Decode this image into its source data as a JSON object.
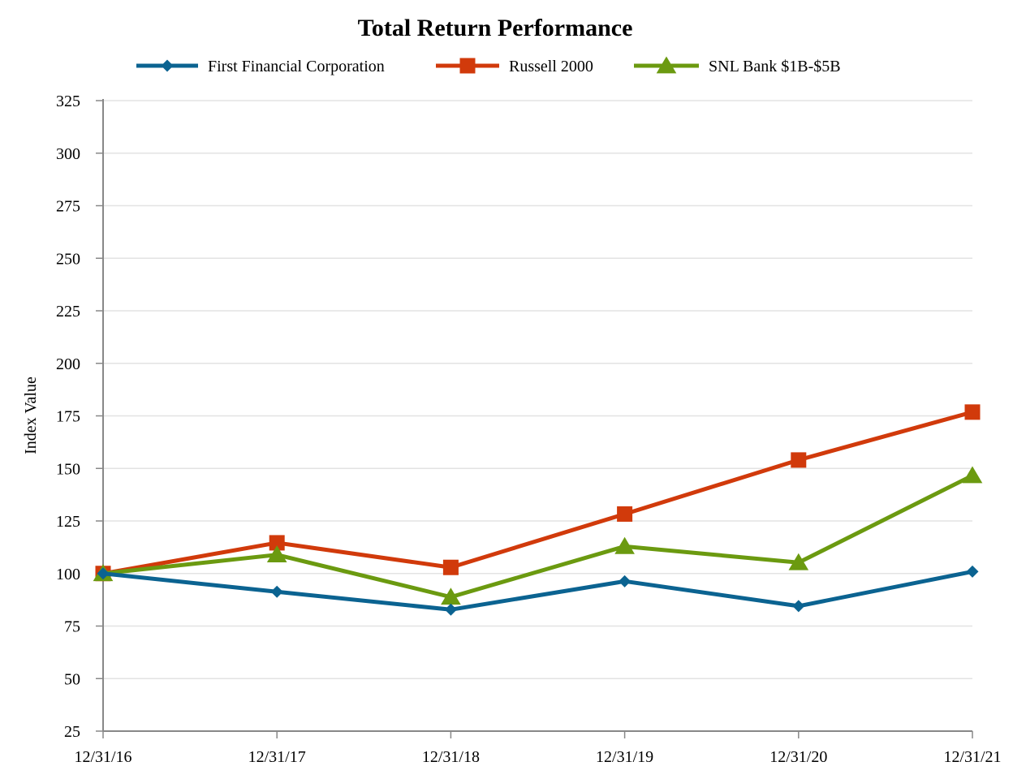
{
  "chart_data": {
    "type": "line",
    "title": "Total Return Performance",
    "xlabel": "",
    "ylabel": "Index Value",
    "x": [
      "12/31/16",
      "12/31/17",
      "12/31/18",
      "12/31/19",
      "12/31/20",
      "12/31/21"
    ],
    "ylim": [
      25,
      325
    ],
    "yticks": [
      25,
      50,
      75,
      100,
      125,
      150,
      175,
      200,
      225,
      250,
      275,
      300,
      325
    ],
    "grid": "horizontal",
    "legend_position": "top",
    "series": [
      {
        "name": "First Financial Corporation",
        "color": "#0b6391",
        "marker": "diamond",
        "values": [
          100.0,
          91.3,
          82.8,
          96.3,
          84.5,
          100.9
        ]
      },
      {
        "name": "Russell 2000",
        "color": "#d13a0b",
        "marker": "square",
        "values": [
          100.0,
          114.6,
          102.9,
          128.3,
          154.0,
          176.8
        ]
      },
      {
        "name": "SNL Bank $1B-$5B",
        "color": "#6b9a10",
        "marker": "triangle",
        "values": [
          100.0,
          108.9,
          88.8,
          112.9,
          105.2,
          146.6
        ]
      }
    ]
  }
}
